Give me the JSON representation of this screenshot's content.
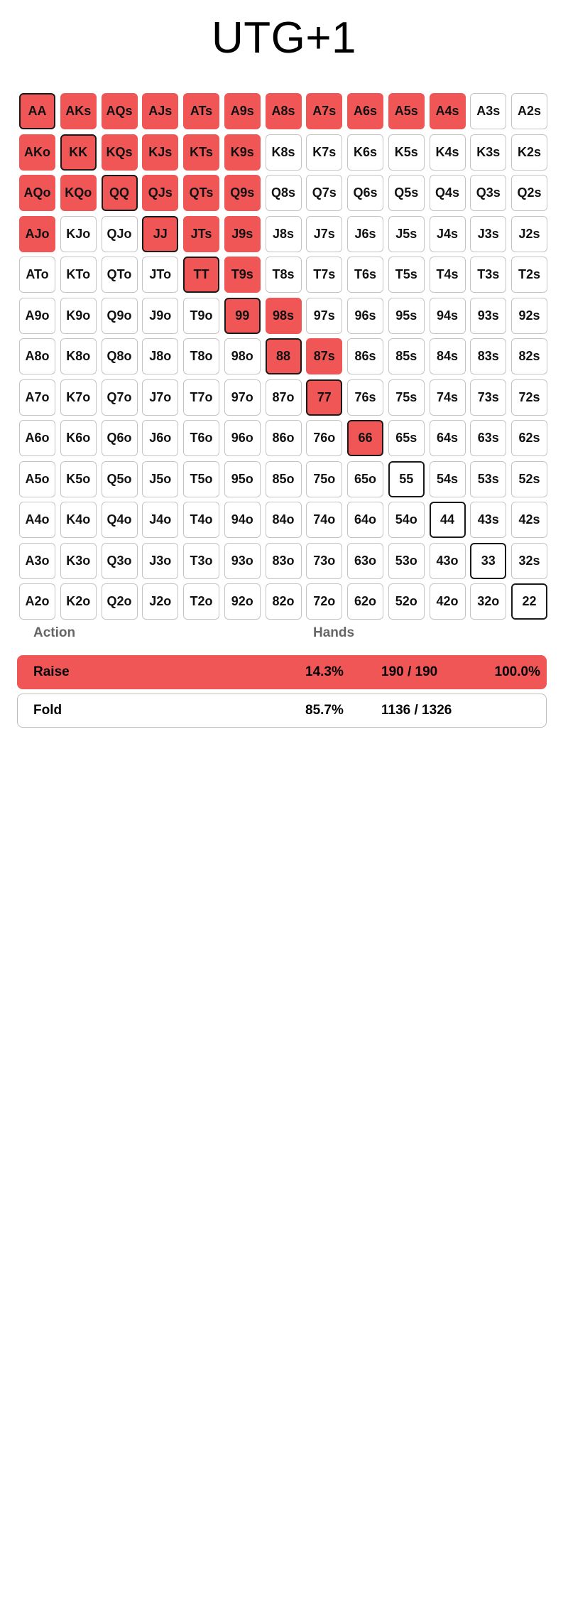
{
  "title": "UTG+1",
  "colors": {
    "raise": "#f05656",
    "fold": "#ffffff",
    "cell_border": "#c4c4c4",
    "pair_border": "#1a1a1a"
  },
  "grid": {
    "rows": [
      [
        "AA",
        "AKs",
        "AQs",
        "AJs",
        "ATs",
        "A9s",
        "A8s",
        "A7s",
        "A6s",
        "A5s",
        "A4s",
        "A3s",
        "A2s"
      ],
      [
        "AKo",
        "KK",
        "KQs",
        "KJs",
        "KTs",
        "K9s",
        "K8s",
        "K7s",
        "K6s",
        "K5s",
        "K4s",
        "K3s",
        "K2s"
      ],
      [
        "AQo",
        "KQo",
        "QQ",
        "QJs",
        "QTs",
        "Q9s",
        "Q8s",
        "Q7s",
        "Q6s",
        "Q5s",
        "Q4s",
        "Q3s",
        "Q2s"
      ],
      [
        "AJo",
        "KJo",
        "QJo",
        "JJ",
        "JTs",
        "J9s",
        "J8s",
        "J7s",
        "J6s",
        "J5s",
        "J4s",
        "J3s",
        "J2s"
      ],
      [
        "ATo",
        "KTo",
        "QTo",
        "JTo",
        "TT",
        "T9s",
        "T8s",
        "T7s",
        "T6s",
        "T5s",
        "T4s",
        "T3s",
        "T2s"
      ],
      [
        "A9o",
        "K9o",
        "Q9o",
        "J9o",
        "T9o",
        "99",
        "98s",
        "97s",
        "96s",
        "95s",
        "94s",
        "93s",
        "92s"
      ],
      [
        "A8o",
        "K8o",
        "Q8o",
        "J8o",
        "T8o",
        "98o",
        "88",
        "87s",
        "86s",
        "85s",
        "84s",
        "83s",
        "82s"
      ],
      [
        "A7o",
        "K7o",
        "Q7o",
        "J7o",
        "T7o",
        "97o",
        "87o",
        "77",
        "76s",
        "75s",
        "74s",
        "73s",
        "72s"
      ],
      [
        "A6o",
        "K6o",
        "Q6o",
        "J6o",
        "T6o",
        "96o",
        "86o",
        "76o",
        "66",
        "65s",
        "64s",
        "63s",
        "62s"
      ],
      [
        "A5o",
        "K5o",
        "Q5o",
        "J5o",
        "T5o",
        "95o",
        "85o",
        "75o",
        "65o",
        "55",
        "54s",
        "53s",
        "52s"
      ],
      [
        "A4o",
        "K4o",
        "Q4o",
        "J4o",
        "T4o",
        "94o",
        "84o",
        "74o",
        "64o",
        "54o",
        "44",
        "43s",
        "42s"
      ],
      [
        "A3o",
        "K3o",
        "Q3o",
        "J3o",
        "T3o",
        "93o",
        "83o",
        "73o",
        "63o",
        "53o",
        "43o",
        "33",
        "32s"
      ],
      [
        "A2o",
        "K2o",
        "Q2o",
        "J2o",
        "T2o",
        "92o",
        "82o",
        "72o",
        "62o",
        "52o",
        "42o",
        "32o",
        "22"
      ]
    ],
    "raise_hands": [
      "AA",
      "AKs",
      "AQs",
      "AJs",
      "ATs",
      "A9s",
      "A8s",
      "A7s",
      "A6s",
      "A5s",
      "A4s",
      "AKo",
      "KK",
      "KQs",
      "KJs",
      "KTs",
      "K9s",
      "AQo",
      "KQo",
      "QQ",
      "QJs",
      "QTs",
      "Q9s",
      "AJo",
      "JJ",
      "JTs",
      "J9s",
      "TT",
      "T9s",
      "99",
      "98s",
      "88",
      "87s",
      "77",
      "66"
    ]
  },
  "legend": {
    "action_header": "Action",
    "hands_header": "Hands"
  },
  "actions": {
    "raise": {
      "label": "Raise",
      "percent": "14.3%",
      "combos": "190 / 190",
      "frequency": "100.0%"
    },
    "fold": {
      "label": "Fold",
      "percent": "85.7%",
      "combos": "1136 / 1326"
    }
  }
}
